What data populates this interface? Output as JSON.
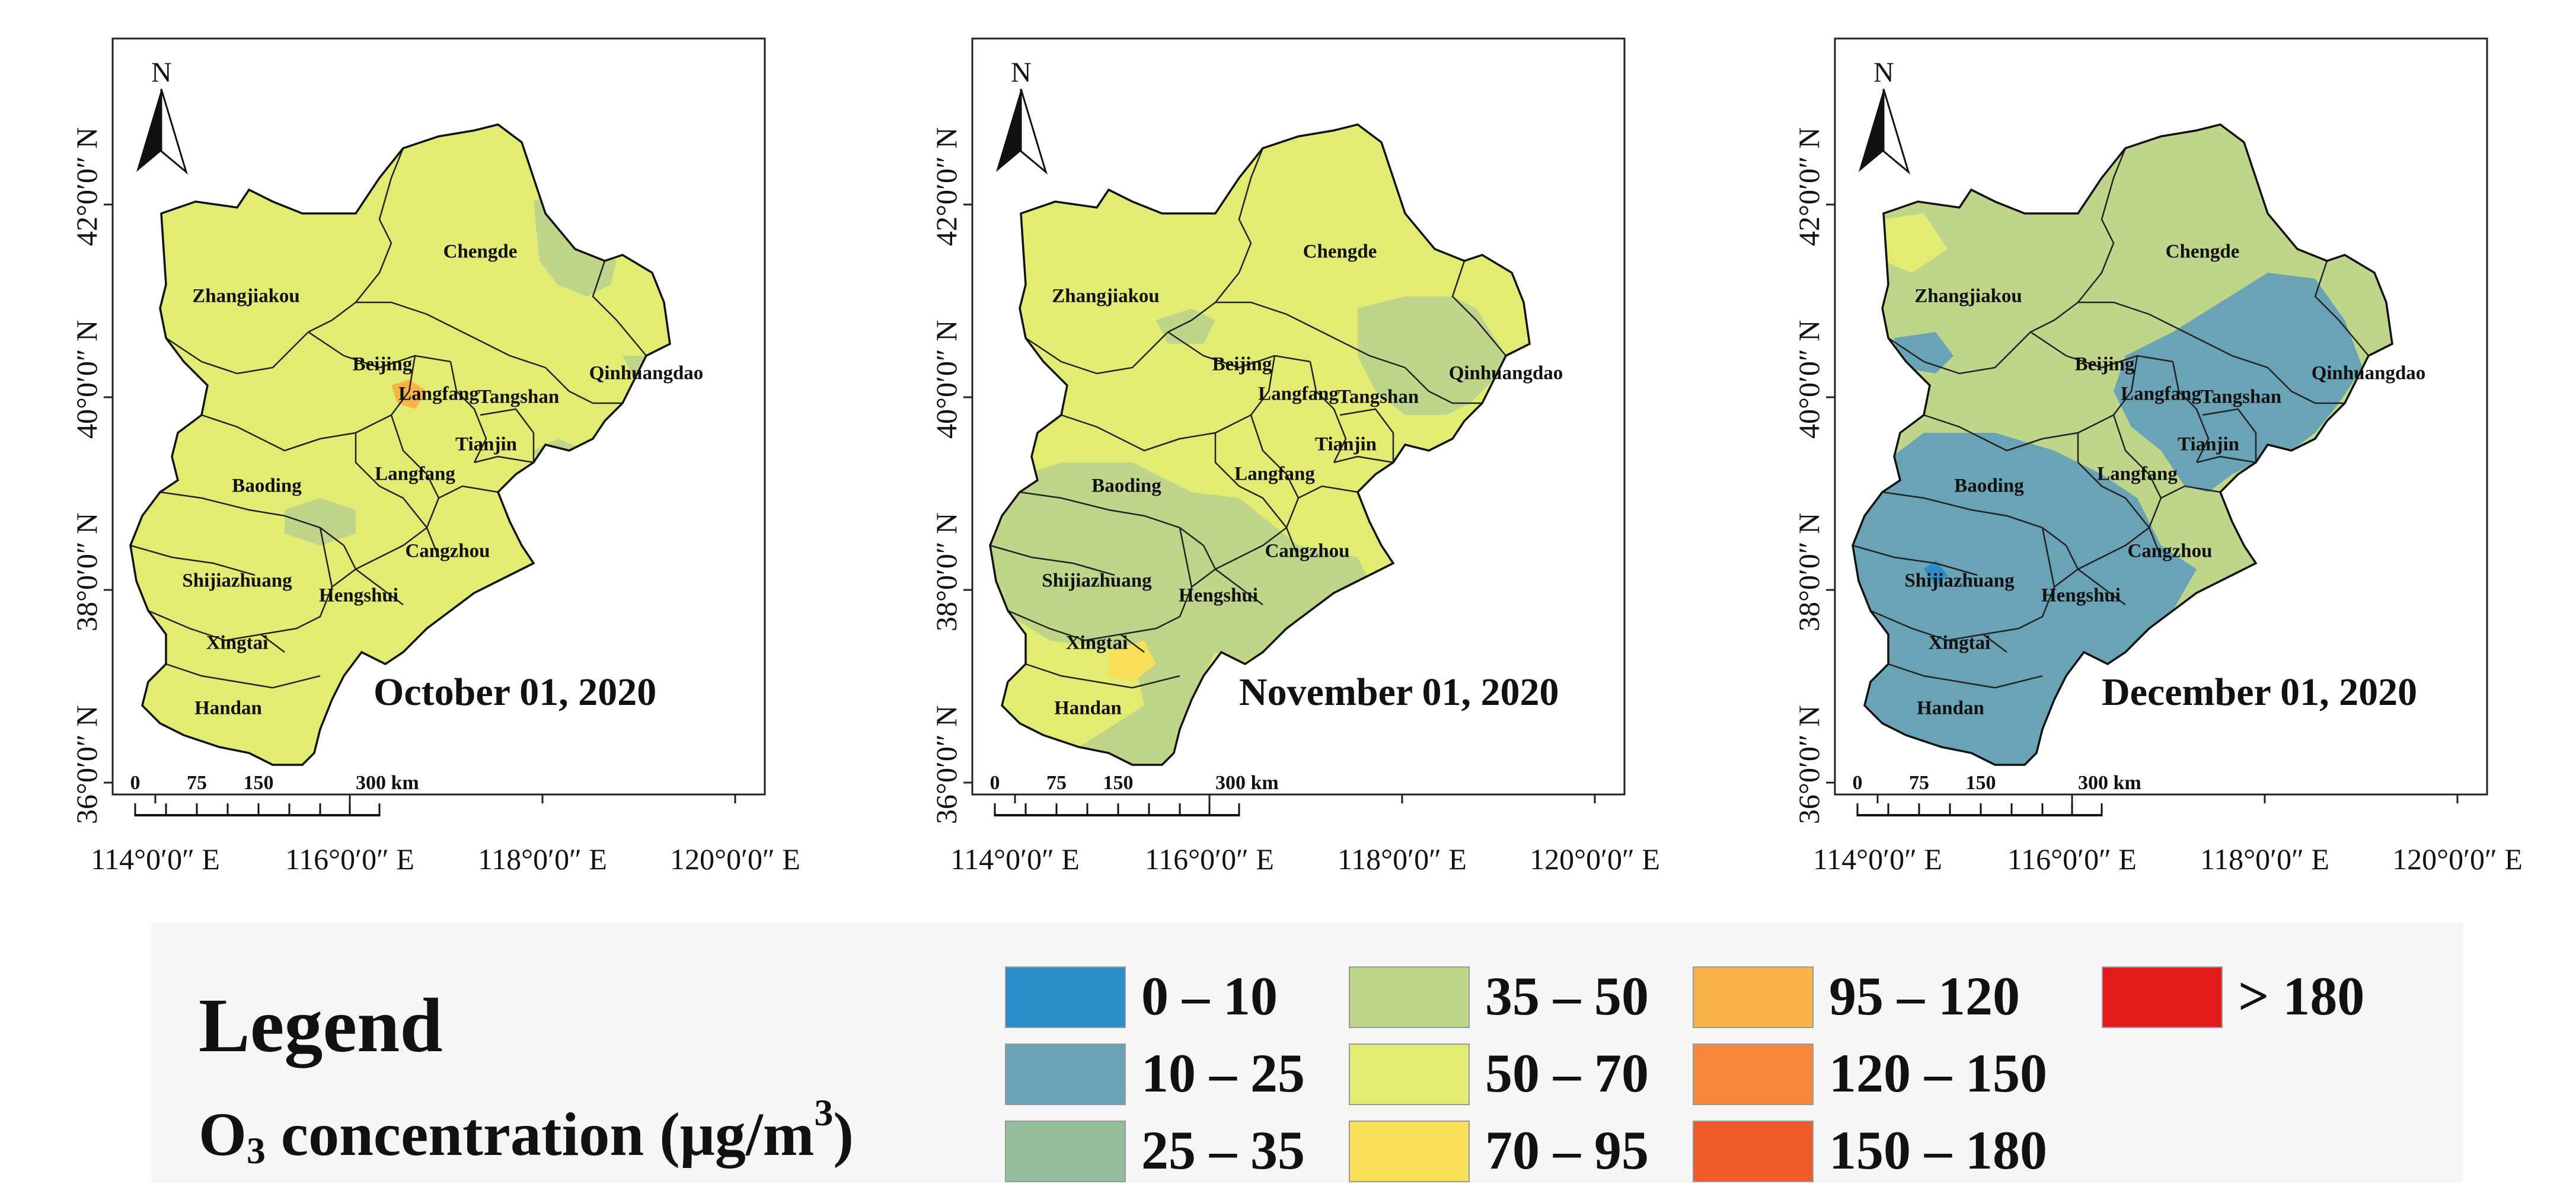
{
  "panels": [
    {
      "date": "October 01, 2020",
      "cities": {
        "chengde": "Chengde",
        "zhangjiakou": "Zhangjiakou",
        "beijing": "Beijing",
        "langfang_north": "Langfang",
        "tangshan": "Tangshan",
        "qinhuangdao": "Qinhuangdao",
        "tianjin": "Tianjin",
        "baoding": "Baoding",
        "langfang_south": "Langfang",
        "cangzhou": "Cangzhou",
        "shijiazhuang": "Shijiazhuang",
        "hengshui": "Hengshui",
        "xingtai": "Xingtai",
        "handan": "Handan"
      }
    },
    {
      "date": "November 01, 2020",
      "cities": {
        "chengde": "Chengde",
        "zhangjiakou": "Zhangjiakou",
        "beijing": "Beijing",
        "langfang_north": "Langfang",
        "tangshan": "Tangshan",
        "qinhuangdao": "Qinhuangdao",
        "tianjin": "Tianjin",
        "baoding": "Baoding",
        "langfang_south": "Langfang",
        "cangzhou": "Cangzhou",
        "shijiazhuang": "Shijiazhuang",
        "hengshui": "Hengshui",
        "xingtai": "Xingtai",
        "handan": "Handan"
      }
    },
    {
      "date": "December 01, 2020",
      "cities": {
        "chengde": "Chengde",
        "zhangjiakou": "Zhangjiakou",
        "beijing": "Beijing",
        "langfang_north": "Langfang",
        "tangshan": "Tangshan",
        "qinhuangdao": "Qinhuangdao",
        "tianjin": "Tianjin",
        "baoding": "Baoding",
        "langfang_south": "Langfang",
        "cangzhou": "Cangzhou",
        "shijiazhuang": "Shijiazhuang",
        "hengshui": "Hengshui",
        "xingtai": "Xingtai",
        "handan": "Handan"
      }
    }
  ],
  "axes": {
    "lat": [
      "42°0′0″ N",
      "40°0′0″ N",
      "38°0′0″ N",
      "36°0′0″ N"
    ],
    "lon": [
      "114°0′0″ E",
      "116°0′0″ E",
      "118°0′0″ E",
      "120°0′0″ E"
    ]
  },
  "north": "N",
  "scalebar": {
    "ticks": [
      "0",
      "75",
      "150",
      "300 km"
    ]
  },
  "legend": {
    "title": "Legend",
    "subtitle_prefix": "O",
    "subtitle_subscript": "3",
    "subtitle_middle": " concentration (μg/m",
    "subtitle_superscript": "3",
    "subtitle_suffix": ")",
    "items": [
      {
        "label": "0 – 10",
        "color": "#2b8cc8"
      },
      {
        "label": "10 – 25",
        "color": "#6aa3b5"
      },
      {
        "label": "25 – 35",
        "color": "#93bd9b"
      },
      {
        "label": "35 – 50",
        "color": "#bfd68a"
      },
      {
        "label": "50 – 70",
        "color": "#e3ec72"
      },
      {
        "label": "70 – 95",
        "color": "#f9e05a"
      },
      {
        "label": "95 – 120",
        "color": "#f8b447"
      },
      {
        "label": "120 – 150",
        "color": "#f5883a"
      },
      {
        "label": "150 – 180",
        "color": "#ee5a2a"
      },
      {
        "label": "> 180",
        "color": "#e31a1c"
      }
    ]
  }
}
